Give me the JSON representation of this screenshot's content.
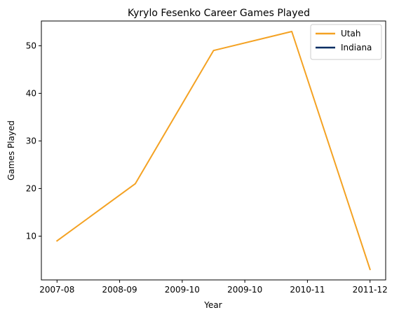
{
  "chart_data": {
    "type": "line",
    "title": "Kyrylo Fesenko Career Games Played",
    "xlabel": "Year",
    "ylabel": "Games Played",
    "x": [
      0,
      1,
      2,
      3,
      4
    ],
    "x_tick_values": [
      0,
      0.8,
      1.6,
      2.4,
      3.2,
      4.0
    ],
    "x_tick_labels": [
      "2007-08",
      "2008-09",
      "2009-10",
      "2009-10",
      "2010-11",
      "2011-12"
    ],
    "xlim": [
      -0.2,
      4.2
    ],
    "yticks": [
      10,
      20,
      30,
      40,
      50
    ],
    "ylim": [
      0.8,
      55.2
    ],
    "grid": false,
    "legend_position": "top-right",
    "series": [
      {
        "name": "Utah",
        "color": "#F4A223",
        "x": [
          0,
          1,
          2,
          3,
          4
        ],
        "values": [
          9,
          21,
          49,
          53,
          3
        ]
      },
      {
        "name": "Indiana",
        "color": "#002D62",
        "x": [],
        "values": []
      }
    ]
  }
}
